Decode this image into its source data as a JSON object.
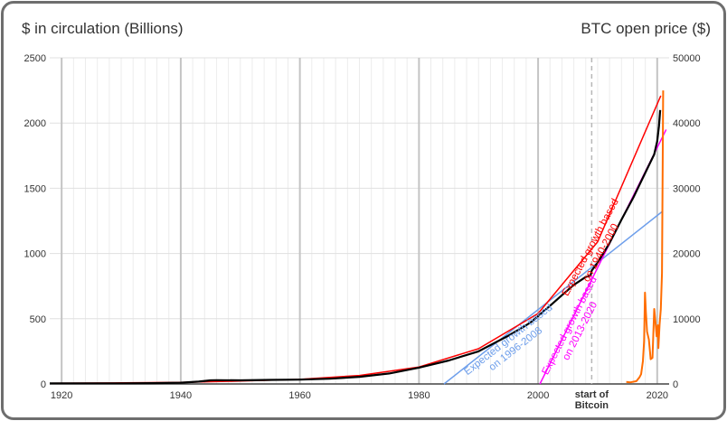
{
  "chart_data": {
    "type": "line",
    "left_axis_title": "$ in circulation (Billions)",
    "right_axis_title": "BTC open price ($)",
    "xlim": [
      1918,
      2022
    ],
    "ylim_left": [
      0,
      2500
    ],
    "ylim_right": [
      0,
      50000
    ],
    "x_ticks": [
      1920,
      1940,
      1960,
      1980,
      2000,
      2020
    ],
    "y_ticks_left": [
      0,
      500,
      1000,
      1500,
      2000,
      2500
    ],
    "y_ticks_right": [
      0,
      10000,
      20000,
      30000,
      40000,
      50000
    ],
    "grid": true,
    "colors": {
      "circulation": "#000000",
      "fit_1940_2000": "#ff0000",
      "fit_1996_2008": "#6d9eeb",
      "fit_2013_2020": "#ff00ff",
      "btc": "#ff6d01",
      "start_marker": "#b7b7b7"
    },
    "series": [
      {
        "key": "circulation",
        "axis": "left",
        "x": [
          1918,
          1925,
          1930,
          1935,
          1940,
          1943,
          1945,
          1946,
          1950,
          1955,
          1960,
          1965,
          1970,
          1975,
          1980,
          1985,
          1990,
          1995,
          1998,
          1999,
          2000,
          2001,
          2002,
          2004,
          2006,
          2008,
          2008.8,
          2009,
          2010,
          2012,
          2014,
          2016,
          2018,
          2019.5,
          2020,
          2020.3,
          2020.5
        ],
        "values": [
          5,
          5,
          5,
          6,
          10,
          18,
          28,
          29,
          28,
          31,
          33,
          40,
          55,
          80,
          125,
          180,
          250,
          370,
          450,
          480,
          520,
          560,
          600,
          680,
          760,
          820,
          830,
          870,
          930,
          1080,
          1260,
          1430,
          1620,
          1760,
          1860,
          1980,
          2100
        ]
      },
      {
        "key": "fit_1940_2000",
        "axis": "left",
        "x": [
          1918,
          1930,
          1940,
          1950,
          1960,
          1970,
          1980,
          1990,
          2000,
          2010,
          2020.6
        ],
        "values": [
          5,
          8,
          12,
          22,
          35,
          65,
          130,
          270,
          540,
          1090,
          2210
        ]
      },
      {
        "key": "fit_1996_2008",
        "axis": "left",
        "x": [
          1984.2,
          2020.8
        ],
        "values": [
          0,
          1320
        ]
      },
      {
        "key": "fit_2013_2020",
        "axis": "left",
        "x": [
          2000.3,
          2021.5
        ],
        "values": [
          0,
          1950
        ]
      },
      {
        "key": "btc",
        "axis": "right",
        "x": [
          2014.8,
          2015.5,
          2016.5,
          2017,
          2017.3,
          2017.6,
          2017.8,
          2017.95,
          2018.1,
          2018.3,
          2018.6,
          2018.9,
          2019.2,
          2019.5,
          2019.7,
          2019.9,
          2020.1,
          2020.2,
          2020.4,
          2020.6,
          2020.8,
          2021.0
        ],
        "values": [
          300,
          250,
          430,
          1000,
          1500,
          3500,
          6500,
          14000,
          11000,
          8000,
          6800,
          3800,
          4000,
          11500,
          9500,
          7300,
          9000,
          5500,
          9200,
          11500,
          17000,
          45000
        ]
      }
    ],
    "annotations": [
      {
        "text": "Expected growth based",
        "text2": "on 1940-2000",
        "color": "#ff0000"
      },
      {
        "text": "Expected growth based",
        "text2": "on 1996-2008",
        "color": "#6d9eeb"
      },
      {
        "text": "Expected growth based",
        "text2": "on 2013-2020",
        "color": "#ff00ff"
      }
    ],
    "marker": {
      "x": 2009,
      "label1": "start of",
      "label2": "Bitcoin"
    }
  }
}
